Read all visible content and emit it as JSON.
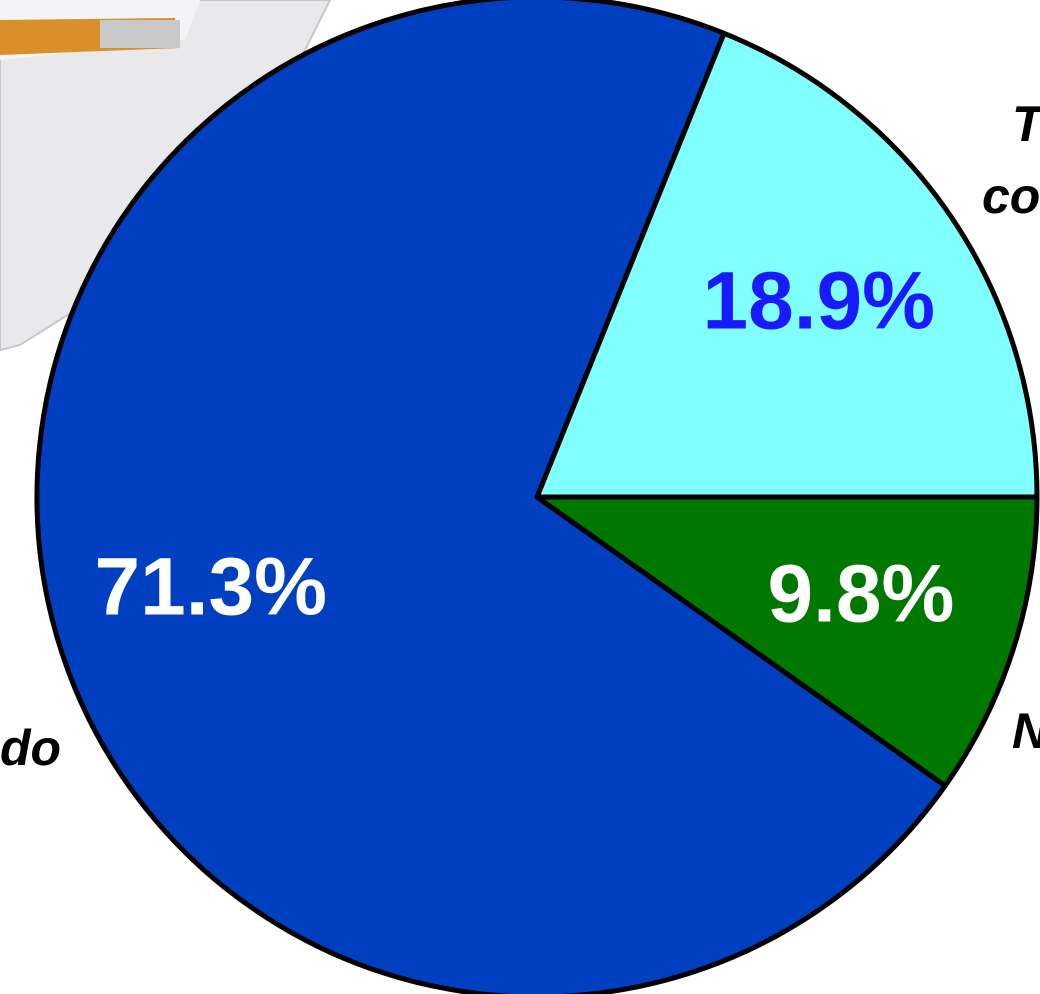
{
  "chart_data": {
    "type": "pie",
    "categories": [
      [
        "T",
        "co"
      ],
      [
        "do"
      ],
      [
        "N"
      ]
    ],
    "values": [
      18.9,
      71.3,
      9.8
    ],
    "value_labels": [
      "18.9%",
      "71.3%",
      "9.8%"
    ],
    "colors": [
      "#80ffff",
      "#0040c0",
      "#007800"
    ],
    "label_colors": [
      "#1a1aff",
      "#ffffff",
      "#ffffff"
    ],
    "start_angle": 0,
    "direction": "counterclockwise"
  }
}
